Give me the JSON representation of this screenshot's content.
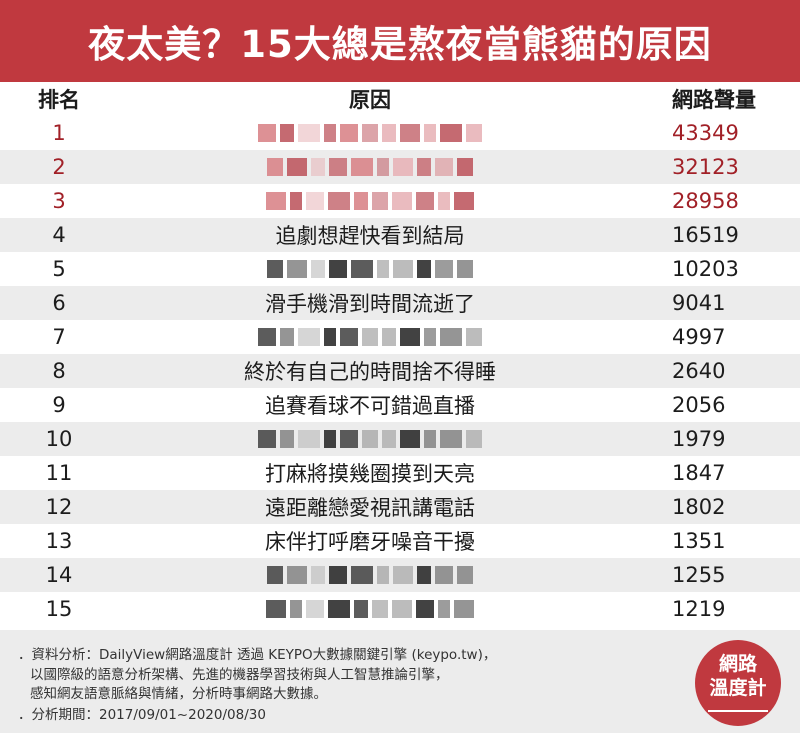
{
  "title": "夜太美？15大總是熬夜當熊貓的原因",
  "chart_data": {
    "type": "table",
    "columns": [
      "排名",
      "原因",
      "網路聲量"
    ],
    "rows": [
      {
        "rank": "1",
        "reason": "",
        "volume": "43349",
        "blurred": true
      },
      {
        "rank": "2",
        "reason": "",
        "volume": "32123",
        "blurred": true
      },
      {
        "rank": "3",
        "reason": "",
        "volume": "28958",
        "blurred": true
      },
      {
        "rank": "4",
        "reason": "追劇想趕快看到結局",
        "volume": "16519",
        "blurred": false
      },
      {
        "rank": "5",
        "reason": "",
        "volume": "10203",
        "blurred": true
      },
      {
        "rank": "6",
        "reason": "滑手機滑到時間流逝了",
        "volume": "9041",
        "blurred": false
      },
      {
        "rank": "7",
        "reason": "",
        "volume": "4997",
        "blurred": true
      },
      {
        "rank": "8",
        "reason": "終於有自己的時間捨不得睡",
        "volume": "2640",
        "blurred": false
      },
      {
        "rank": "9",
        "reason": "追賽看球不可錯過直播",
        "volume": "2056",
        "blurred": false
      },
      {
        "rank": "10",
        "reason": "",
        "volume": "1979",
        "blurred": true
      },
      {
        "rank": "11",
        "reason": "打麻將摸幾圈摸到天亮",
        "volume": "1847",
        "blurred": false
      },
      {
        "rank": "12",
        "reason": "遠距離戀愛視訊講電話",
        "volume": "1802",
        "blurred": false
      },
      {
        "rank": "13",
        "reason": "床伴打呼磨牙噪音干擾",
        "volume": "1351",
        "blurred": false
      },
      {
        "rank": "14",
        "reason": "",
        "volume": "1255",
        "blurred": true
      },
      {
        "rank": "15",
        "reason": "",
        "volume": "1219",
        "blurred": true
      }
    ]
  },
  "footer": {
    "line1": "．資料分析：DailyView網路溫度計 透過 KEYPO大數據關鍵引擎 (keypo.tw)，",
    "line2": "以國際級的語意分析架構、先進的機器學習技術與人工智慧推論引擎，",
    "line3": "感知網友語意脈絡與情緒，分析時事網路大數據。",
    "line4": "．分析期間：2017/09/01~2020/08/30"
  },
  "logo": {
    "line1": "網路",
    "line2": "溫度計"
  },
  "colors": {
    "header_bg": "#c0393f",
    "top_rank_text": "#a12027",
    "alt_row": "#ececec"
  }
}
